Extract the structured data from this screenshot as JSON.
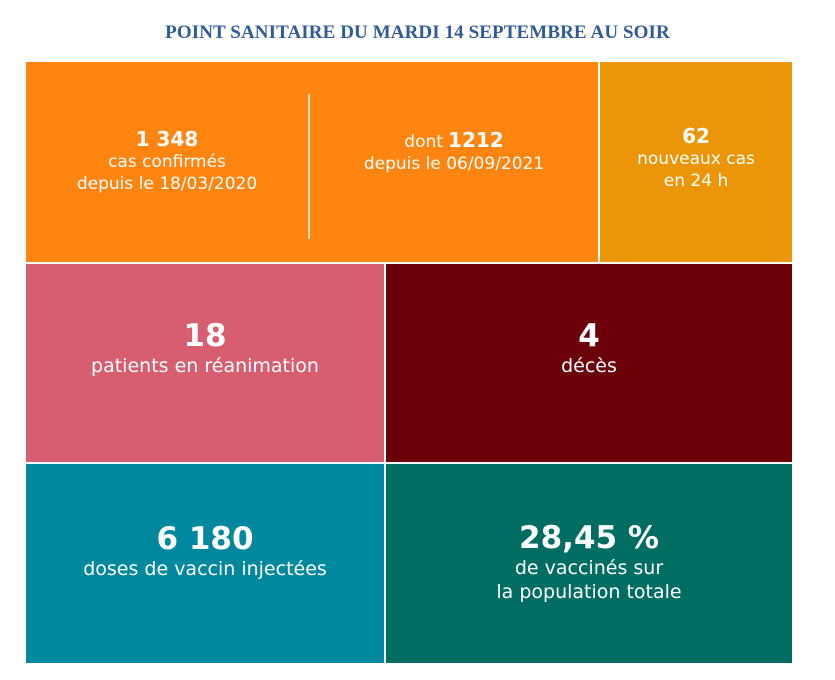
{
  "title": "POINT SANITAIRE DU MARDI 14 SEPTEMBRE AU SOIR",
  "tiles": {
    "confirmed": {
      "value": "1 348",
      "line1": "cas confirmés",
      "line2": "depuis le 18/03/2020",
      "color": "#ff8510"
    },
    "since": {
      "prefix": "dont",
      "value": "1212",
      "line1": "depuis le 06/09/2021",
      "color": "#ff8510"
    },
    "new_cases": {
      "value": "62",
      "line1": "nouveaux cas",
      "line2": "en 24 h",
      "color": "#ea9608"
    },
    "icu": {
      "value": "18",
      "line1": "patients en réanimation",
      "color": "#d75e70"
    },
    "deaths": {
      "value": "4",
      "line1": "décès",
      "color": "#6c0008"
    },
    "doses": {
      "value": "6 180",
      "line1": "doses de vaccin injectées",
      "color": "#00889e"
    },
    "vaccinated": {
      "value": "28,45 %",
      "line1": "de vaccinés sur",
      "line2": "la population totale",
      "color": "#006d62"
    }
  }
}
